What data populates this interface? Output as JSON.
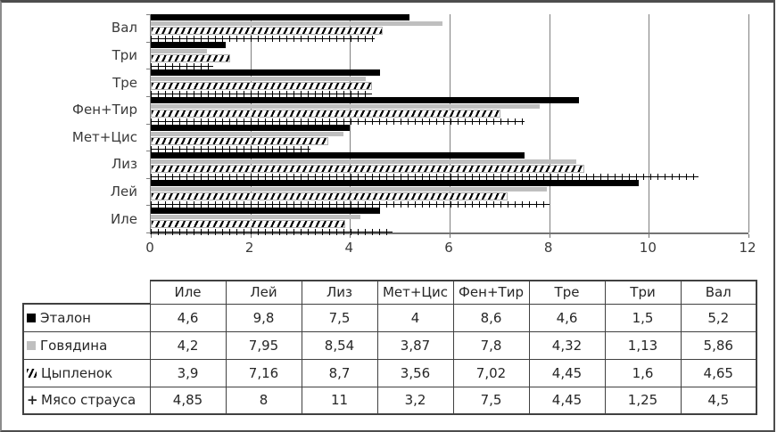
{
  "chart_data": {
    "type": "bar",
    "orientation": "horizontal",
    "title": "",
    "xlabel": "",
    "ylabel": "",
    "xlim": [
      0,
      12
    ],
    "xticks": [
      0,
      2,
      4,
      6,
      8,
      10,
      12
    ],
    "xtick_labels": [
      "0",
      "2",
      "4",
      "6",
      "8",
      "10",
      "12"
    ],
    "grid": "vertical-gray",
    "legend_position": "table-left",
    "categories_top_to_bottom": [
      "Вал",
      "Три",
      "Тре",
      "Фен+Тир",
      "Мет+Цис",
      "Лиз",
      "Лей",
      "Иле"
    ],
    "series": [
      {
        "name": "Эталон",
        "style": "solid-black",
        "marker": "black-square",
        "values": [
          5.2,
          1.5,
          4.6,
          8.6,
          4,
          7.5,
          9.8,
          4.6
        ]
      },
      {
        "name": "Говядина",
        "style": "solid-gray",
        "marker": "gray-square",
        "values": [
          5.86,
          1.13,
          4.32,
          7.8,
          3.87,
          8.54,
          7.95,
          4.2
        ]
      },
      {
        "name": "Цыпленок",
        "style": "diagonal-hatch",
        "marker": "hatch-glyph",
        "values": [
          4.65,
          1.6,
          4.45,
          7.02,
          3.56,
          8.7,
          7.16,
          3.9
        ]
      },
      {
        "name": "Мясо страуса",
        "style": "plus-line",
        "marker": "plus-sign",
        "values": [
          4.5,
          1.25,
          4.45,
          7.5,
          3.2,
          11,
          8,
          4.85
        ]
      }
    ]
  },
  "table": {
    "columns": [
      "Иле",
      "Лей",
      "Лиз",
      "Мет+Цис",
      "Фен+Тир",
      "Тре",
      "Три",
      "Вал"
    ],
    "rows": [
      {
        "label": "Эталон",
        "marker": "black-square",
        "values": [
          "4,6",
          "9,8",
          "7,5",
          "4",
          "8,6",
          "4,6",
          "1,5",
          "5,2"
        ]
      },
      {
        "label": "Говядина",
        "marker": "gray-square",
        "values": [
          "4,2",
          "7,95",
          "8,54",
          "3,87",
          "7,8",
          "4,32",
          "1,13",
          "5,86"
        ]
      },
      {
        "label": "Цыпленок",
        "marker": "hatch-glyph",
        "values": [
          "3,9",
          "7,16",
          "8,7",
          "3,56",
          "7,02",
          "4,45",
          "1,6",
          "4,65"
        ]
      },
      {
        "label": "Мясо страуса",
        "marker": "plus-sign",
        "values": [
          "4,85",
          "8",
          "11",
          "3,2",
          "7,5",
          "4,45",
          "1,25",
          "4,5"
        ]
      }
    ]
  },
  "colors": {
    "bar_black": "#000000",
    "bar_gray": "#bfbfbf",
    "gridline": "#808080",
    "table_border": "#404040",
    "text": "#262626",
    "frame_border": "#4d4d4d"
  },
  "markers": {
    "plus_glyph": "+"
  }
}
